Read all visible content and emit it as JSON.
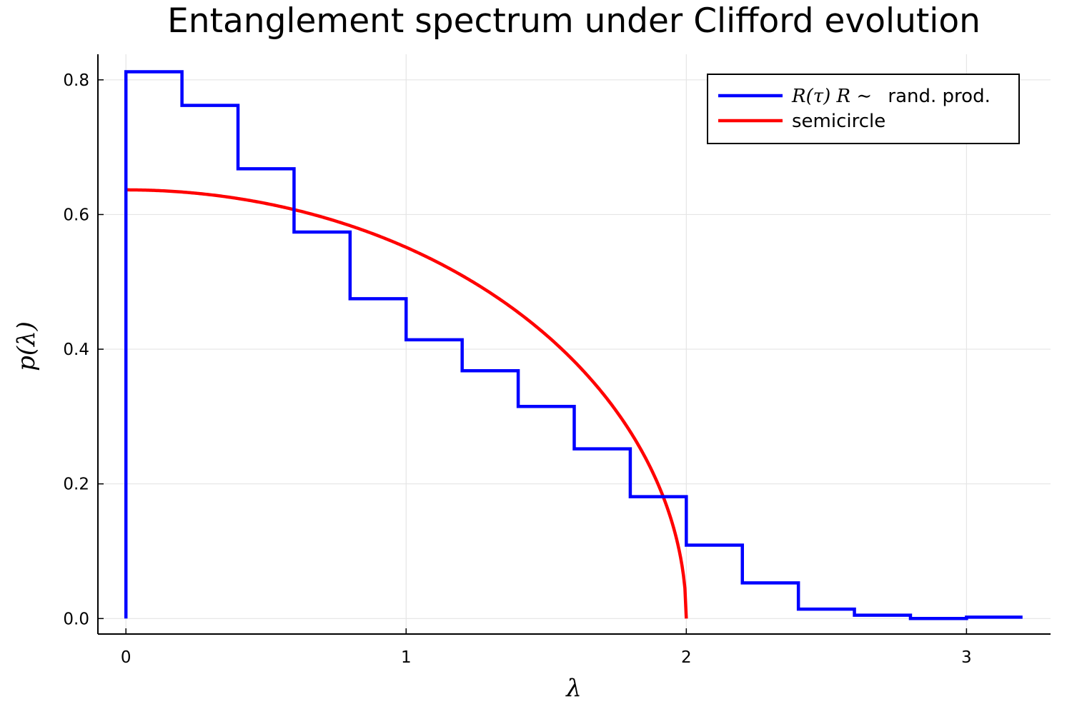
{
  "chart_data": {
    "type": "line",
    "title": "Entanglement spectrum under Clifford evolution",
    "xlabel": "λ",
    "ylabel": "p(λ)",
    "xlim": [
      -0.1,
      3.3
    ],
    "ylim": [
      -0.023,
      0.838
    ],
    "xticks": [
      0,
      1,
      2,
      3
    ],
    "xtick_labels": [
      "0",
      "1",
      "2",
      "3"
    ],
    "yticks": [
      0.0,
      0.2,
      0.4,
      0.6,
      0.8
    ],
    "ytick_labels": [
      "0.0",
      "0.2",
      "0.4",
      "0.6",
      "0.8"
    ],
    "grid": true,
    "legend_position": "top-right",
    "series": [
      {
        "name": "R(τ) R ∼  rand. prod.",
        "name_math": "R(τ) R ∼",
        "name_text": "rand. prod.",
        "style": "step",
        "color": "#0000ff",
        "bin_edges": [
          0,
          0.2,
          0.4,
          0.6,
          0.8,
          1.0,
          1.2,
          1.4,
          1.6,
          1.8,
          2.0,
          2.2,
          2.4,
          2.6,
          2.8,
          3.0,
          3.2
        ],
        "values": [
          0.812,
          0.762,
          0.668,
          0.574,
          0.475,
          0.414,
          0.368,
          0.315,
          0.252,
          0.181,
          0.109,
          0.053,
          0.014,
          0.005,
          0.0,
          0.002
        ]
      },
      {
        "name": "semicircle",
        "style": "curve",
        "color": "#ff0000",
        "formula": "sqrt(4 - x^2) / pi",
        "x_range": [
          0,
          2
        ]
      }
    ]
  }
}
